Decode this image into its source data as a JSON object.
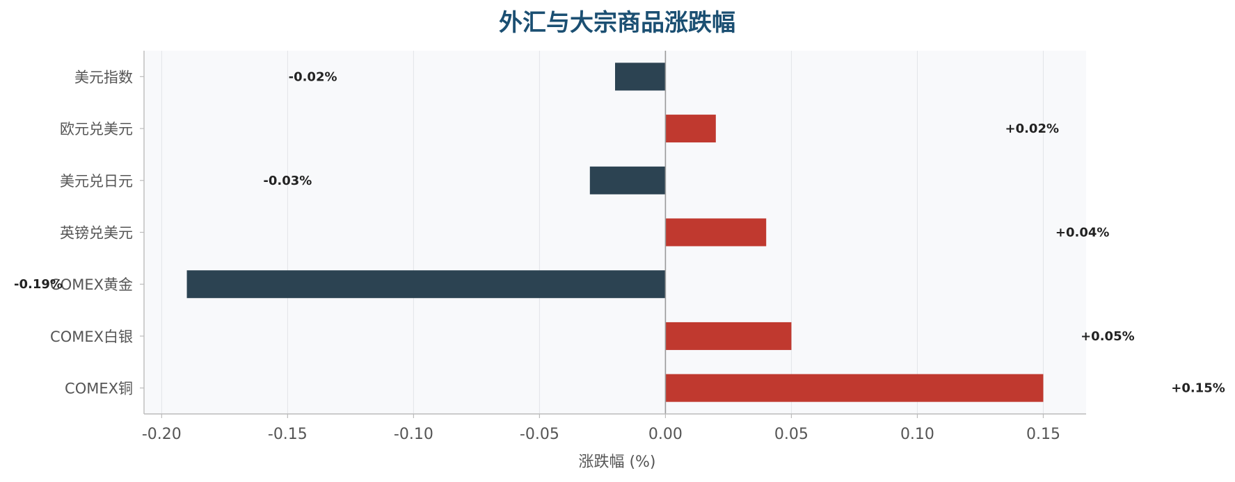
{
  "chart_data": {
    "type": "bar",
    "orientation": "horizontal",
    "title": "外汇与大宗商品涨跌幅",
    "xlabel": "涨跌幅 (%)",
    "ylabel": "",
    "categories": [
      "美元指数",
      "欧元兑美元",
      "美元兑日元",
      "英镑兑美元",
      "COMEX黄金",
      "COMEX白银",
      "COMEX铜"
    ],
    "values": [
      -0.02,
      0.02,
      -0.03,
      0.04,
      -0.19,
      0.05,
      0.15
    ],
    "data_labels": [
      "-0.02%",
      "+0.02%",
      "-0.03%",
      "+0.04%",
      "-0.19%",
      "+0.05%",
      "+0.15%"
    ],
    "xticks": [
      -0.2,
      -0.15,
      -0.1,
      -0.05,
      0.0,
      0.05,
      0.1,
      0.15
    ],
    "xtick_labels": [
      "-0.20",
      "-0.15",
      "-0.10",
      "-0.05",
      "0.00",
      "0.05",
      "0.10",
      "0.15"
    ],
    "xlim": [
      -0.207,
      0.167
    ],
    "grid": "vertical",
    "legend": "none",
    "colors": {
      "positive": "#c0392f",
      "negative": "#2c4352",
      "title": "#1b4f72",
      "plot_background": "#f8f9fb",
      "grid": "#e2e4e8",
      "zero_line": "#999999",
      "axis": "#bbbbbb"
    }
  }
}
